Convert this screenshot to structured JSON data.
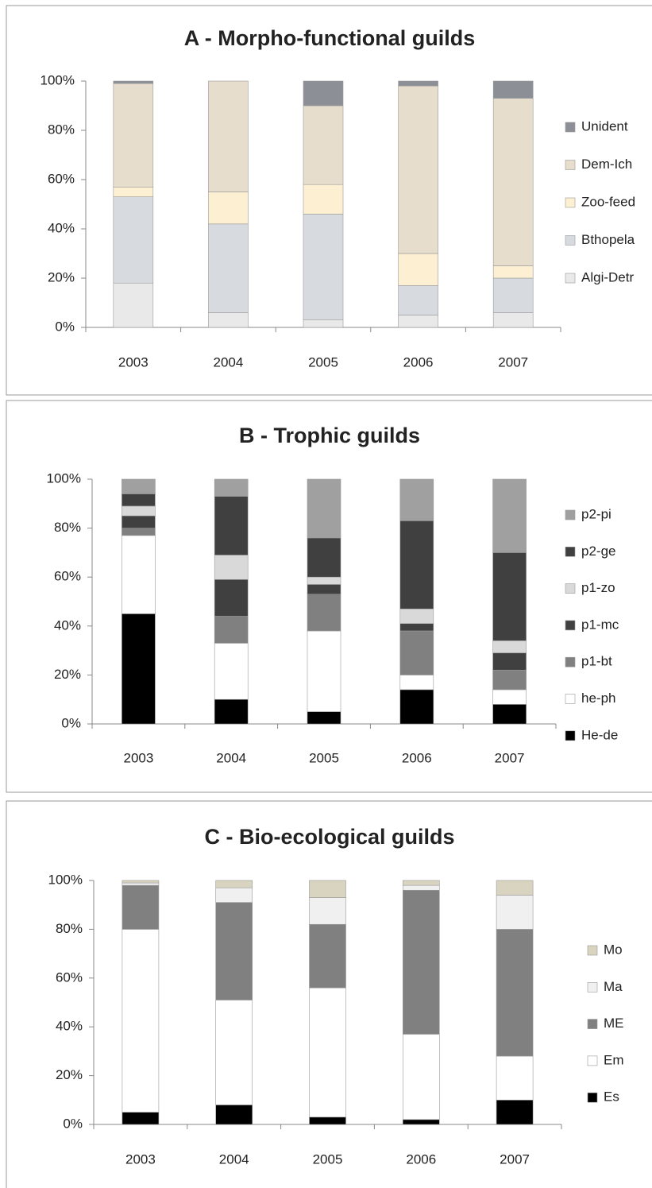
{
  "chart_data": [
    {
      "type": "stacked_bar",
      "title": "A - Morpho-functional guilds",
      "categories": [
        "2003",
        "2004",
        "2005",
        "2006",
        "2007"
      ],
      "ylim": [
        0,
        100
      ],
      "yticks": [
        {
          "value": 0,
          "label": "0%"
        },
        {
          "value": 20,
          "label": "20%"
        },
        {
          "value": 40,
          "label": "40%"
        },
        {
          "value": 60,
          "label": "60%"
        },
        {
          "value": 80,
          "label": "80%"
        },
        {
          "value": 100,
          "label": "100%"
        }
      ],
      "series": [
        {
          "name": "Algi-Detr",
          "color": "#e9e9e9",
          "values": [
            18,
            6,
            3,
            5,
            6
          ]
        },
        {
          "name": "Bthopela",
          "color": "#d7dbe0",
          "values": [
            35,
            36,
            43,
            12,
            14
          ]
        },
        {
          "name": "Zoo-feed",
          "color": "#fdefd2",
          "values": [
            4,
            13,
            12,
            13,
            5
          ]
        },
        {
          "name": "Dem-Ich",
          "color": "#e6ddcc",
          "values": [
            42,
            45,
            32,
            68,
            68
          ]
        },
        {
          "name": "Unident",
          "color": "#8c9096",
          "values": [
            1,
            0,
            10,
            2,
            7
          ]
        }
      ]
    },
    {
      "type": "stacked_bar",
      "title": "B - Trophic guilds",
      "categories": [
        "2003",
        "2004",
        "2005",
        "2006",
        "2007"
      ],
      "ylim": [
        0,
        100
      ],
      "yticks": [
        {
          "value": 0,
          "label": "0%"
        },
        {
          "value": 20,
          "label": "20%"
        },
        {
          "value": 40,
          "label": "40%"
        },
        {
          "value": 60,
          "label": "60%"
        },
        {
          "value": 80,
          "label": "80%"
        },
        {
          "value": 100,
          "label": "100%"
        }
      ],
      "series": [
        {
          "name": "He-de",
          "color": "#000000",
          "values": [
            45,
            10,
            5,
            14,
            8
          ]
        },
        {
          "name": "he-ph",
          "color": "#ffffff",
          "values": [
            32,
            23,
            33,
            6,
            6
          ]
        },
        {
          "name": "p1-bt",
          "color": "#808080",
          "values": [
            3,
            11,
            15,
            18,
            8
          ]
        },
        {
          "name": "p1-mc",
          "color": "#404040",
          "values": [
            5,
            15,
            4,
            3,
            7
          ]
        },
        {
          "name": "p1-zo",
          "color": "#d9d9d9",
          "values": [
            4,
            10,
            3,
            6,
            5
          ]
        },
        {
          "name": "p2-ge",
          "color": "#404040",
          "values": [
            5,
            24,
            16,
            36,
            36
          ]
        },
        {
          "name": "p2-pi",
          "color": "#a0a0a0",
          "values": [
            6,
            7,
            24,
            17,
            30
          ]
        }
      ]
    },
    {
      "type": "stacked_bar",
      "title": "C - Bio-ecological guilds",
      "categories": [
        "2003",
        "2004",
        "2005",
        "2006",
        "2007"
      ],
      "ylim": [
        0,
        100
      ],
      "yticks": [
        {
          "value": 0,
          "label": "0%"
        },
        {
          "value": 20,
          "label": "20%"
        },
        {
          "value": 40,
          "label": "40%"
        },
        {
          "value": 60,
          "label": "60%"
        },
        {
          "value": 80,
          "label": "80%"
        },
        {
          "value": 100,
          "label": "100%"
        }
      ],
      "series": [
        {
          "name": "Es",
          "color": "#000000",
          "values": [
            5,
            8,
            3,
            2,
            10
          ]
        },
        {
          "name": "Em",
          "color": "#ffffff",
          "values": [
            75,
            43,
            53,
            35,
            18
          ]
        },
        {
          "name": "ME",
          "color": "#808080",
          "values": [
            18,
            40,
            26,
            59,
            52
          ]
        },
        {
          "name": "Ma",
          "color": "#f0f0f0",
          "values": [
            1,
            6,
            11,
            2,
            14
          ]
        },
        {
          "name": "Mo",
          "color": "#d8d4c0",
          "values": [
            1,
            3,
            7,
            2,
            6
          ]
        }
      ]
    }
  ]
}
